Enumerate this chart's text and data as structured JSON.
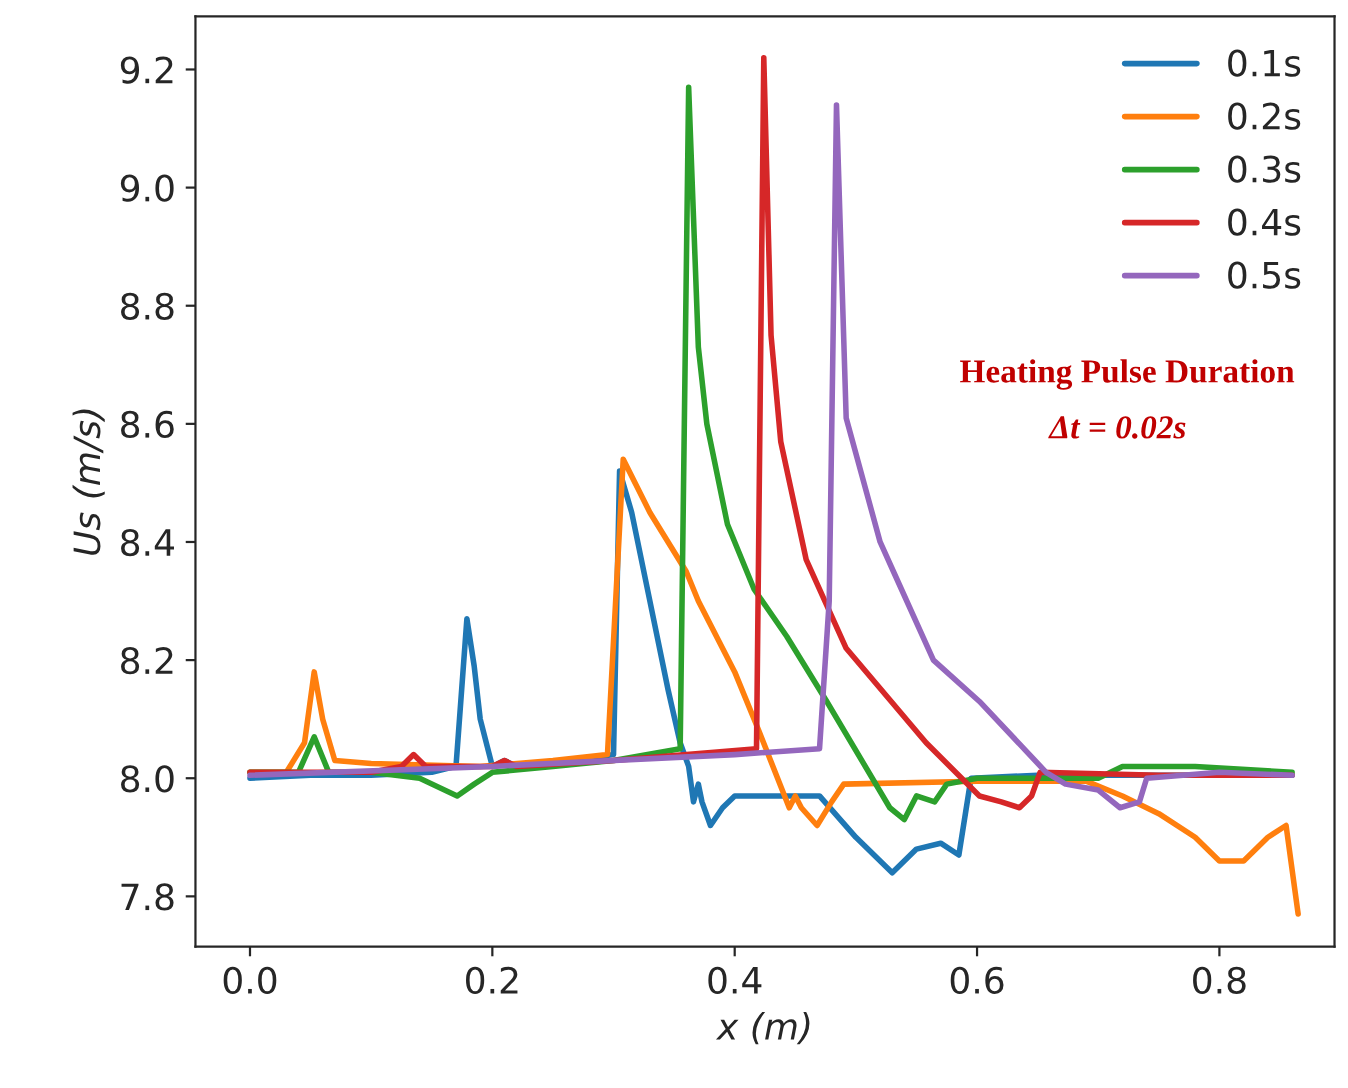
{
  "chart_data": {
    "type": "line",
    "xlabel": "x (m)",
    "ylabel": "Us (m/s)",
    "xlim": [
      -0.045,
      0.895
    ],
    "ylim": [
      7.715,
      9.29
    ],
    "xticks": [
      {
        "value": 0,
        "label": "0.0"
      },
      0.2,
      0.4,
      0.6,
      0.8
    ],
    "yticks": [
      7.8,
      {
        "value": 8,
        "label": "8.0"
      },
      8.2,
      8.4,
      8.6,
      8.8,
      {
        "value": 9,
        "label": "9.0"
      },
      9.2
    ],
    "grid": false,
    "legend": "top right",
    "line_style": "solid",
    "marker": "none",
    "annotations": [
      "Heating Pulse Duration",
      "Δt = 0.02s"
    ],
    "series": [
      {
        "name": "0.1s",
        "color": "#1f77b4",
        "x": [
          0,
          0.05,
          0.1,
          0.15,
          0.17,
          0.179,
          0.185,
          0.19,
          0.2,
          0.21,
          0.22,
          0.25,
          0.3,
          0.305,
          0.315,
          0.33,
          0.345,
          0.355,
          0.362,
          0.366,
          0.37,
          0.373,
          0.38,
          0.39,
          0.4,
          0.47,
          0.5,
          0.53,
          0.55,
          0.57,
          0.585,
          0.595,
          0.65,
          0.75,
          0.86
        ],
        "values": [
          8.0,
          8.005,
          8.005,
          8.01,
          8.02,
          8.27,
          8.19,
          8.1,
          8.02,
          8.03,
          8.02,
          8.025,
          8.04,
          8.52,
          8.45,
          8.3,
          8.15,
          8.06,
          8.02,
          7.96,
          7.99,
          7.96,
          7.92,
          7.95,
          7.97,
          7.97,
          7.9,
          7.84,
          7.88,
          7.89,
          7.87,
          8.0,
          8.005,
          8.005,
          8.005
        ]
      },
      {
        "name": "0.2s",
        "color": "#ff7f0e",
        "x": [
          0,
          0.03,
          0.045,
          0.053,
          0.06,
          0.07,
          0.1,
          0.19,
          0.25,
          0.295,
          0.308,
          0.33,
          0.36,
          0.37,
          0.4,
          0.42,
          0.445,
          0.45,
          0.455,
          0.468,
          0.48,
          0.49,
          0.6,
          0.69,
          0.72,
          0.75,
          0.78,
          0.8,
          0.82,
          0.84,
          0.855,
          0.865
        ],
        "values": [
          8.01,
          8.01,
          8.06,
          8.18,
          8.1,
          8.03,
          8.025,
          8.02,
          8.03,
          8.04,
          8.54,
          8.45,
          8.35,
          8.3,
          8.18,
          8.08,
          7.95,
          7.97,
          7.95,
          7.92,
          7.96,
          7.99,
          7.995,
          7.995,
          7.97,
          7.94,
          7.9,
          7.86,
          7.86,
          7.9,
          7.92,
          7.77
        ]
      },
      {
        "name": "0.3s",
        "color": "#2ca02c",
        "x": [
          0,
          0.04,
          0.053,
          0.065,
          0.1,
          0.14,
          0.171,
          0.185,
          0.2,
          0.25,
          0.3,
          0.355,
          0.362,
          0.37,
          0.377,
          0.394,
          0.416,
          0.443,
          0.476,
          0.528,
          0.54,
          0.55,
          0.565,
          0.575,
          0.6,
          0.7,
          0.72,
          0.78,
          0.86
        ],
        "values": [
          8.01,
          8.01,
          8.07,
          8.01,
          8.01,
          8.0,
          7.97,
          7.99,
          8.01,
          8.02,
          8.03,
          8.05,
          9.17,
          8.73,
          8.6,
          8.43,
          8.32,
          8.24,
          8.13,
          7.95,
          7.93,
          7.97,
          7.96,
          7.99,
          8.0,
          8.0,
          8.02,
          8.02,
          8.01
        ]
      },
      {
        "name": "0.4s",
        "color": "#d62728",
        "x": [
          0,
          0.1,
          0.125,
          0.135,
          0.145,
          0.2,
          0.21,
          0.22,
          0.3,
          0.418,
          0.424,
          0.43,
          0.438,
          0.459,
          0.492,
          0.558,
          0.602,
          0.62,
          0.635,
          0.645,
          0.652,
          0.75,
          0.86
        ],
        "values": [
          8.01,
          8.01,
          8.02,
          8.04,
          8.02,
          8.02,
          8.03,
          8.02,
          8.03,
          8.05,
          9.22,
          8.75,
          8.57,
          8.37,
          8.22,
          8.06,
          7.97,
          7.96,
          7.95,
          7.97,
          8.01,
          8.005,
          8.005
        ]
      },
      {
        "name": "0.5s",
        "color": "#9467bd",
        "x": [
          0,
          0.2,
          0.4,
          0.47,
          0.478,
          0.484,
          0.492,
          0.52,
          0.531,
          0.564,
          0.602,
          0.657,
          0.673,
          0.7,
          0.718,
          0.734,
          0.74,
          0.8,
          0.86
        ],
        "values": [
          8.005,
          8.02,
          8.04,
          8.05,
          8.3,
          9.14,
          8.61,
          8.4,
          8.35,
          8.2,
          8.13,
          8.01,
          7.99,
          7.98,
          7.95,
          7.96,
          8.0,
          8.01,
          8.005
        ]
      }
    ]
  }
}
